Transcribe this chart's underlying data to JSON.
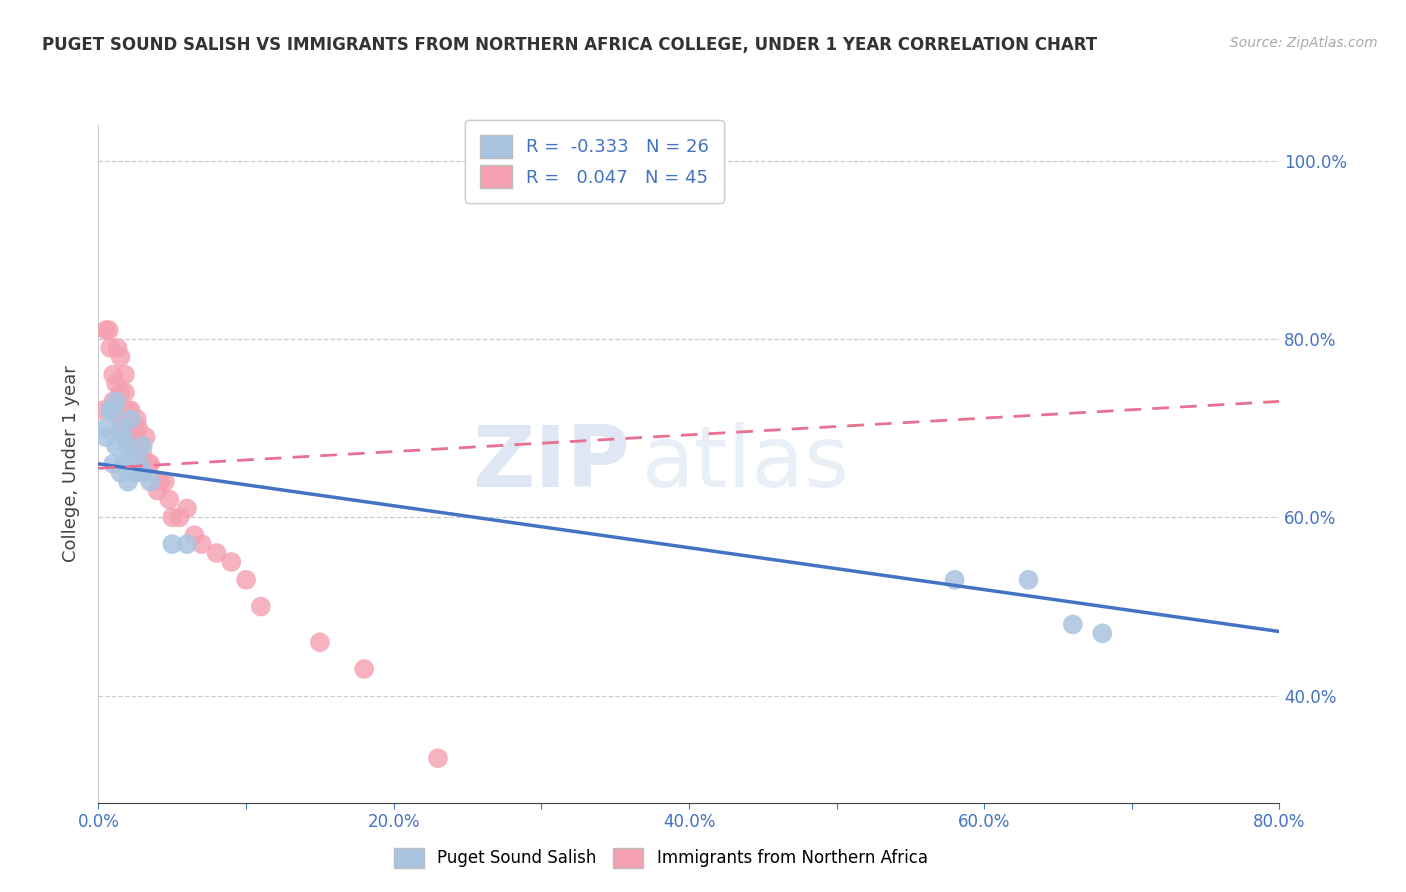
{
  "title": "PUGET SOUND SALISH VS IMMIGRANTS FROM NORTHERN AFRICA COLLEGE, UNDER 1 YEAR CORRELATION CHART",
  "source": "Source: ZipAtlas.com",
  "ylabel": "College, Under 1 year",
  "xlim": [
    0.0,
    0.8
  ],
  "ylim": [
    0.28,
    1.04
  ],
  "xticks": [
    0.0,
    0.1,
    0.2,
    0.3,
    0.4,
    0.5,
    0.6,
    0.7,
    0.8
  ],
  "yticks": [
    0.4,
    0.6,
    0.8,
    1.0
  ],
  "xtick_labels": [
    "0.0%",
    "",
    "20.0%",
    "",
    "40.0%",
    "",
    "60.0%",
    "",
    "80.0%"
  ],
  "ytick_labels": [
    "40.0%",
    "60.0%",
    "80.0%",
    "100.0%"
  ],
  "blue_color": "#a8c4e0",
  "pink_color": "#f4a0b0",
  "blue_line_color": "#4472c4",
  "pink_line_color": "#e87090",
  "watermark_zip": "ZIP",
  "watermark_atlas": "atlas",
  "legend_r_blue": "-0.333",
  "legend_n_blue": "26",
  "legend_r_pink": "0.047",
  "legend_n_pink": "45",
  "blue_points_x": [
    0.005,
    0.005,
    0.008,
    0.01,
    0.01,
    0.012,
    0.012,
    0.015,
    0.015,
    0.017,
    0.017,
    0.02,
    0.02,
    0.022,
    0.022,
    0.025,
    0.028,
    0.03,
    0.03,
    0.035,
    0.05,
    0.06,
    0.58,
    0.63,
    0.66,
    0.68
  ],
  "blue_points_y": [
    0.69,
    0.7,
    0.72,
    0.66,
    0.72,
    0.68,
    0.73,
    0.65,
    0.7,
    0.66,
    0.69,
    0.64,
    0.68,
    0.67,
    0.71,
    0.65,
    0.66,
    0.65,
    0.68,
    0.64,
    0.57,
    0.57,
    0.53,
    0.53,
    0.48,
    0.47
  ],
  "pink_points_x": [
    0.003,
    0.005,
    0.007,
    0.008,
    0.01,
    0.01,
    0.012,
    0.012,
    0.013,
    0.015,
    0.015,
    0.015,
    0.017,
    0.018,
    0.018,
    0.02,
    0.02,
    0.022,
    0.022,
    0.024,
    0.025,
    0.026,
    0.027,
    0.028,
    0.03,
    0.03,
    0.032,
    0.034,
    0.035,
    0.04,
    0.042,
    0.045,
    0.048,
    0.05,
    0.055,
    0.06,
    0.065,
    0.07,
    0.08,
    0.09,
    0.1,
    0.11,
    0.15,
    0.18,
    0.23
  ],
  "pink_points_y": [
    0.72,
    0.81,
    0.81,
    0.79,
    0.73,
    0.76,
    0.75,
    0.72,
    0.79,
    0.71,
    0.74,
    0.78,
    0.7,
    0.74,
    0.76,
    0.7,
    0.72,
    0.69,
    0.72,
    0.7,
    0.68,
    0.71,
    0.7,
    0.68,
    0.67,
    0.65,
    0.69,
    0.66,
    0.66,
    0.63,
    0.64,
    0.64,
    0.62,
    0.6,
    0.6,
    0.61,
    0.58,
    0.57,
    0.56,
    0.55,
    0.53,
    0.5,
    0.46,
    0.43,
    0.33
  ],
  "blue_line_x": [
    0.0,
    0.8
  ],
  "blue_line_y_start": 0.66,
  "blue_line_y_end": 0.472,
  "pink_line_x": [
    0.0,
    0.8
  ],
  "pink_line_y_start": 0.655,
  "pink_line_y_end": 0.73
}
